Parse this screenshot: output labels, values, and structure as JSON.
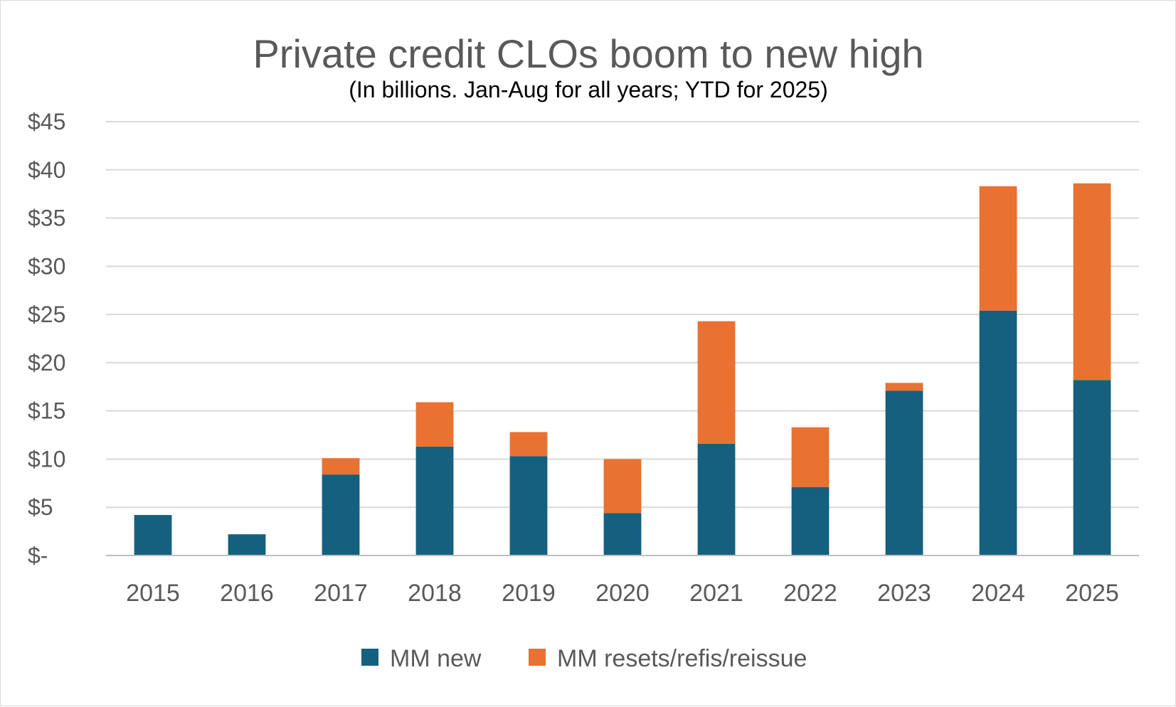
{
  "chart_data": {
    "type": "bar",
    "stacked": true,
    "title": "Private credit CLOs boom to new high",
    "subtitle": "(In billions. Jan-Aug for all years; YTD for 2025)",
    "xlabel": "",
    "ylabel": "",
    "categories": [
      "2015",
      "2016",
      "2017",
      "2018",
      "2019",
      "2020",
      "2021",
      "2022",
      "2023",
      "2024",
      "2025"
    ],
    "series": [
      {
        "name": "MM new",
        "color": "#15607f",
        "values": [
          4.2,
          2.2,
          8.4,
          11.3,
          10.3,
          4.4,
          11.6,
          7.1,
          17.1,
          25.4,
          18.2
        ]
      },
      {
        "name": "MM resets/refis/reissue",
        "color": "#e97132",
        "values": [
          0,
          0,
          1.7,
          4.6,
          2.5,
          5.6,
          12.7,
          6.2,
          0.8,
          12.9,
          20.4
        ]
      }
    ],
    "ylim": [
      0,
      45
    ],
    "yticks": [
      0,
      5,
      10,
      15,
      20,
      25,
      30,
      35,
      40,
      45
    ],
    "ytick_labels": [
      "$-",
      "$5",
      "$10",
      "$15",
      "$20",
      "$25",
      "$30",
      "$35",
      "$40",
      "$45"
    ],
    "grid": true,
    "legend_position": "bottom"
  }
}
